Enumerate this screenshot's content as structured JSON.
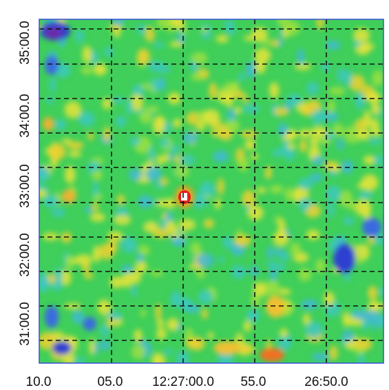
{
  "x_labels": [
    "10.0",
    "05.0",
    "12:27:00.0",
    "55.0",
    "26:50.0"
  ],
  "y_labels": [
    "31:00.0",
    "32:00.0",
    "33:00.0",
    "34:00.0",
    "35:00.0"
  ]
}
